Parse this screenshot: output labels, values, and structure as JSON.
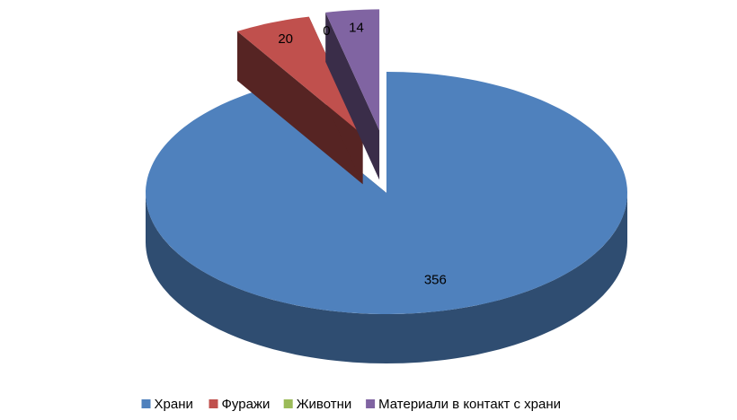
{
  "chart_data": {
    "type": "pie3d",
    "categories": [
      "Храни",
      "Фуражи",
      "Животни",
      "Материали в контакт с храни"
    ],
    "values": [
      356,
      20,
      0,
      14
    ],
    "colors": [
      "#4f81bd",
      "#c0504d",
      "#9bbb59",
      "#8064a2"
    ],
    "legend": "bottom"
  }
}
